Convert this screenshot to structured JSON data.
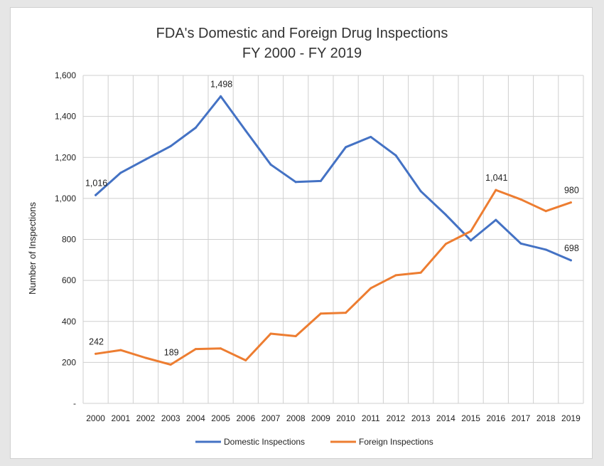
{
  "chart_data": {
    "type": "line",
    "title": "FDA's Domestic and Foreign Drug Inspections",
    "subtitle": "FY 2000 - FY 2019",
    "xlabel": "",
    "ylabel": "Number of Inspections",
    "categories": [
      "2000",
      "2001",
      "2002",
      "2003",
      "2004",
      "2005",
      "2006",
      "2007",
      "2008",
      "2009",
      "2010",
      "2011",
      "2012",
      "2013",
      "2014",
      "2015",
      "2016",
      "2017",
      "2018",
      "2019"
    ],
    "ylim": [
      0,
      1600
    ],
    "yticks": [
      {
        "value": 0,
        "label": "-"
      },
      {
        "value": 200,
        "label": "200"
      },
      {
        "value": 400,
        "label": "400"
      },
      {
        "value": 600,
        "label": "600"
      },
      {
        "value": 800,
        "label": "800"
      },
      {
        "value": 1000,
        "label": "1,000"
      },
      {
        "value": 1200,
        "label": "1,200"
      },
      {
        "value": 1400,
        "label": "1,400"
      },
      {
        "value": 1600,
        "label": "1,600"
      }
    ],
    "grid": true,
    "legend": "bottom",
    "series": [
      {
        "name": "Domestic Inspections",
        "color": "#4472c4",
        "values": [
          1016,
          1125,
          1190,
          1255,
          1345,
          1498,
          1330,
          1165,
          1080,
          1085,
          1250,
          1300,
          1210,
          1035,
          920,
          795,
          895,
          780,
          750,
          698
        ]
      },
      {
        "name": "Foreign Inspections",
        "color": "#ed7d31",
        "values": [
          242,
          260,
          222,
          189,
          265,
          268,
          210,
          340,
          328,
          438,
          442,
          562,
          625,
          638,
          778,
          840,
          1041,
          995,
          938,
          980
        ]
      }
    ],
    "annotations": [
      {
        "series": 0,
        "index": 0,
        "text": "1,016",
        "pos": "above"
      },
      {
        "series": 0,
        "index": 5,
        "text": "1,498",
        "pos": "above"
      },
      {
        "series": 0,
        "index": 19,
        "text": "698",
        "pos": "above"
      },
      {
        "series": 1,
        "index": 0,
        "text": "242",
        "pos": "above"
      },
      {
        "series": 1,
        "index": 3,
        "text": "189",
        "pos": "above"
      },
      {
        "series": 1,
        "index": 16,
        "text": "1,041",
        "pos": "above"
      },
      {
        "series": 1,
        "index": 19,
        "text": "980",
        "pos": "above"
      }
    ]
  }
}
